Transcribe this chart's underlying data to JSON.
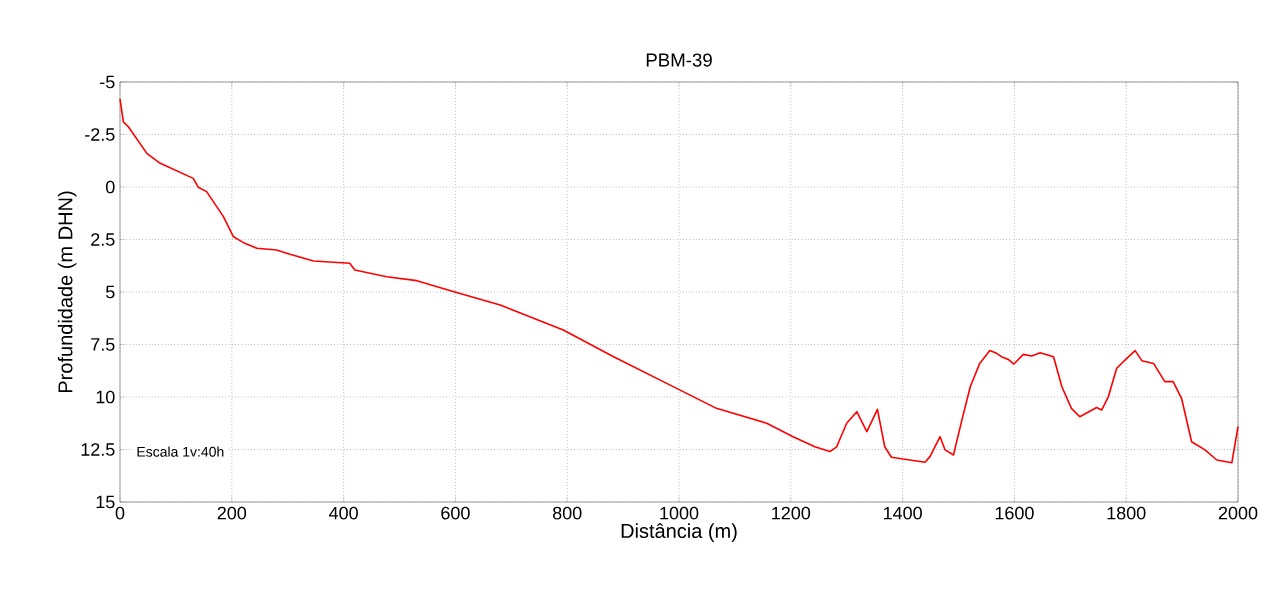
{
  "chart_data": {
    "type": "line",
    "title": "PBM-39",
    "xlabel": "Distância (m)",
    "ylabel": "Profundidade (m DHN)",
    "annotations": [
      "Escala 1v:40h"
    ],
    "xlim": [
      0,
      2000
    ],
    "xticks": [
      0,
      200,
      400,
      600,
      800,
      1000,
      1200,
      1400,
      1600,
      1800,
      2000
    ],
    "ylim": [
      15,
      -5
    ],
    "yticks": [
      -5,
      -2.5,
      0,
      2.5,
      5,
      7.5,
      10,
      12.5,
      15
    ],
    "grid": true,
    "series": [
      {
        "color": "#ff0000",
        "x": [
          0,
          6,
          15,
          48,
          72,
          131,
          140,
          155,
          185,
          203,
          221,
          245,
          280,
          304,
          346,
          411,
          420,
          477,
          531,
          596,
          680,
          793,
          883,
          978,
          1067,
          1157,
          1204,
          1243,
          1270,
          1282,
          1300,
          1318,
          1336,
          1355,
          1368,
          1380,
          1413,
          1440,
          1449,
          1467,
          1476,
          1491,
          1506,
          1521,
          1538,
          1556,
          1568,
          1577,
          1589,
          1599,
          1616,
          1631,
          1646,
          1670,
          1685,
          1702,
          1717,
          1747,
          1756,
          1768,
          1783,
          1801,
          1816,
          1828,
          1849,
          1869,
          1884,
          1899,
          1917,
          1941,
          1962,
          1989,
          2000
        ],
        "values": [
          -4.2,
          -3.1,
          -2.87,
          -1.6,
          -1.13,
          -0.41,
          0.01,
          0.22,
          1.41,
          2.37,
          2.65,
          2.92,
          3.0,
          3.2,
          3.52,
          3.63,
          3.95,
          4.27,
          4.46,
          4.98,
          5.62,
          6.81,
          8.08,
          9.35,
          10.54,
          11.25,
          11.89,
          12.37,
          12.6,
          12.37,
          11.25,
          10.7,
          11.65,
          10.59,
          12.37,
          12.87,
          13.0,
          13.11,
          12.84,
          11.89,
          12.52,
          12.76,
          11.1,
          9.51,
          8.4,
          7.79,
          7.92,
          8.08,
          8.21,
          8.43,
          7.97,
          8.05,
          7.89,
          8.08,
          9.51,
          10.54,
          10.94,
          10.5,
          10.62,
          9.99,
          8.63,
          8.16,
          7.79,
          8.27,
          8.4,
          9.27,
          9.27,
          10.06,
          12.13,
          12.52,
          13.0,
          13.13,
          11.41
        ]
      }
    ]
  }
}
